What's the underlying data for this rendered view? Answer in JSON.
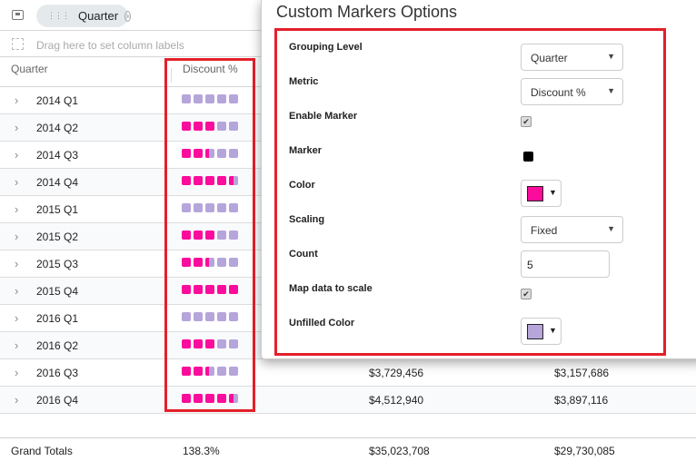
{
  "toolbar": {
    "row_chip": "Quarter",
    "column_placeholder": "Drag here to set column labels"
  },
  "grid": {
    "headers": [
      "Quarter",
      "Discount %"
    ],
    "rows": [
      {
        "label": "2014 Q1",
        "fill": [
          0,
          0,
          0,
          0,
          0
        ],
        "v1": "",
        "v2": ""
      },
      {
        "label": "2014 Q2",
        "fill": [
          1,
          1,
          1,
          0,
          0
        ],
        "v1": "",
        "v2": ""
      },
      {
        "label": "2014 Q3",
        "fill": [
          1,
          1,
          0.4,
          0,
          0
        ],
        "v1": "",
        "v2": ""
      },
      {
        "label": "2014 Q4",
        "fill": [
          1,
          1,
          1,
          1,
          0.5
        ],
        "v1": "",
        "v2": ""
      },
      {
        "label": "2015 Q1",
        "fill": [
          0,
          0,
          0,
          0,
          0
        ],
        "v1": "",
        "v2": ""
      },
      {
        "label": "2015 Q2",
        "fill": [
          1,
          1,
          1,
          0,
          0
        ],
        "v1": "",
        "v2": ""
      },
      {
        "label": "2015 Q3",
        "fill": [
          1,
          1,
          0.4,
          0,
          0
        ],
        "v1": "",
        "v2": ""
      },
      {
        "label": "2015 Q4",
        "fill": [
          1,
          1,
          1,
          1,
          1
        ],
        "v1": "",
        "v2": ""
      },
      {
        "label": "2016 Q1",
        "fill": [
          0,
          0,
          0,
          0,
          0
        ],
        "v1": "",
        "v2": ""
      },
      {
        "label": "2016 Q2",
        "fill": [
          1,
          1,
          1,
          0,
          0
        ],
        "v1": "",
        "v2": ""
      },
      {
        "label": "2016 Q3",
        "fill": [
          1,
          1,
          0.4,
          0,
          0
        ],
        "v1": "$3,729,456",
        "v2": "$3,157,686"
      },
      {
        "label": "2016 Q4",
        "fill": [
          1,
          1,
          1,
          1,
          0.5
        ],
        "v1": "$4,512,940",
        "v2": "$3,897,116"
      }
    ],
    "totals": {
      "label": "Grand Totals",
      "discount": "138.3%",
      "v1": "$35,023,708",
      "v2": "$29,730,085"
    }
  },
  "popup": {
    "title": "Custom Markers Options",
    "labels": [
      "Grouping Level",
      "Metric",
      "Enable Marker",
      "Marker",
      "Color",
      "Scaling",
      "Count",
      "Map data to scale",
      "Unfilled Color"
    ],
    "grouping_level": "Quarter",
    "metric": "Discount %",
    "enable_marker": true,
    "marker_shape": "square",
    "color": "#fc0c9d",
    "scaling": "Fixed",
    "count": "5",
    "map_data_to_scale": true,
    "unfilled_color": "#b6a5da"
  }
}
